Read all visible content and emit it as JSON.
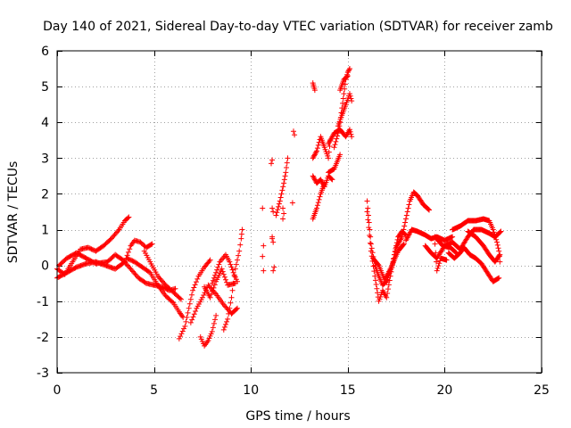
{
  "chart_data": {
    "type": "scatter",
    "title": "Day 140 of 2021, Sidereal Day-to-day VTEC variation (SDTVAR) for receiver zamb",
    "xlabel": "GPS time / hours",
    "ylabel": "SDTVAR / TECUs",
    "xlim": [
      0,
      25
    ],
    "ylim": [
      -3,
      6
    ],
    "xticks": [
      "0",
      "5",
      "10",
      "15",
      "20",
      "25"
    ],
    "yticks": [
      "-3",
      "-2",
      "-1",
      "0",
      "1",
      "2",
      "3",
      "4",
      "5",
      "6"
    ],
    "grid": true,
    "marker": "+",
    "series": [
      {
        "name": "SDTVAR",
        "color": "#ff0000",
        "tracks": [
          [
            [
              0.0,
              -0.1
            ],
            [
              0.4,
              -0.25
            ],
            [
              0.8,
              0.1
            ],
            [
              1.2,
              0.45
            ],
            [
              1.6,
              0.5
            ],
            [
              2.0,
              0.4
            ],
            [
              2.4,
              0.55
            ],
            [
              2.8,
              0.75
            ],
            [
              3.2,
              1.0
            ],
            [
              3.5,
              1.25
            ],
            [
              3.7,
              1.35
            ]
          ],
          [
            [
              0.0,
              -0.35
            ],
            [
              0.5,
              -0.2
            ],
            [
              1.0,
              -0.05
            ],
            [
              1.5,
              0.05
            ],
            [
              2.0,
              0.1
            ],
            [
              2.5,
              0.0
            ],
            [
              3.0,
              -0.1
            ],
            [
              3.5,
              0.1
            ],
            [
              3.8,
              0.55
            ],
            [
              4.0,
              0.7
            ],
            [
              4.3,
              0.65
            ],
            [
              4.6,
              0.5
            ],
            [
              4.9,
              0.6
            ]
          ],
          [
            [
              0.1,
              0.0
            ],
            [
              0.5,
              0.2
            ],
            [
              1.0,
              0.35
            ],
            [
              1.5,
              0.2
            ],
            [
              2.0,
              0.05
            ],
            [
              2.6,
              0.1
            ],
            [
              3.0,
              0.3
            ],
            [
              3.4,
              0.15
            ],
            [
              3.8,
              -0.1
            ],
            [
              4.2,
              -0.35
            ],
            [
              4.6,
              -0.5
            ],
            [
              5.0,
              -0.55
            ],
            [
              5.4,
              -0.6
            ],
            [
              5.8,
              -0.7
            ],
            [
              6.1,
              -0.65
            ]
          ],
          [
            [
              3.6,
              0.2
            ],
            [
              4.0,
              0.1
            ],
            [
              4.4,
              -0.05
            ],
            [
              4.8,
              -0.2
            ],
            [
              5.2,
              -0.55
            ],
            [
              5.6,
              -0.85
            ],
            [
              6.0,
              -1.05
            ],
            [
              6.3,
              -1.3
            ],
            [
              6.5,
              -1.45
            ]
          ],
          [
            [
              4.5,
              0.4
            ],
            [
              4.8,
              0.1
            ],
            [
              5.2,
              -0.3
            ],
            [
              5.6,
              -0.55
            ],
            [
              6.0,
              -0.75
            ],
            [
              6.4,
              -0.95
            ]
          ],
          [
            [
              6.3,
              -2.05
            ],
            [
              6.6,
              -1.7
            ],
            [
              6.8,
              -1.2
            ],
            [
              7.0,
              -0.7
            ],
            [
              7.3,
              -0.3
            ],
            [
              7.6,
              -0.05
            ],
            [
              7.9,
              0.15
            ]
          ],
          [
            [
              6.9,
              -1.6
            ],
            [
              7.2,
              -1.2
            ],
            [
              7.5,
              -0.9
            ],
            [
              7.8,
              -0.55
            ],
            [
              8.2,
              -0.8
            ],
            [
              8.6,
              -1.1
            ],
            [
              9.0,
              -1.35
            ],
            [
              9.3,
              -1.2
            ]
          ],
          [
            [
              7.4,
              -2.0
            ],
            [
              7.6,
              -2.25
            ],
            [
              7.8,
              -2.1
            ],
            [
              8.0,
              -1.85
            ],
            [
              8.2,
              -1.4
            ]
          ],
          [
            [
              8.0,
              -0.5
            ],
            [
              8.2,
              -0.2
            ],
            [
              8.4,
              0.1
            ],
            [
              8.7,
              0.3
            ],
            [
              8.9,
              0.1
            ],
            [
              9.1,
              -0.2
            ],
            [
              9.3,
              -0.45
            ]
          ],
          [
            [
              8.6,
              -1.8
            ],
            [
              8.8,
              -1.5
            ],
            [
              8.9,
              -1.2
            ],
            [
              9.0,
              -0.9
            ],
            [
              9.1,
              -0.5
            ],
            [
              9.2,
              -0.1
            ],
            [
              9.4,
              0.4
            ],
            [
              9.5,
              0.75
            ],
            [
              9.55,
              1.0
            ]
          ],
          [
            [
              7.6,
              -0.6
            ],
            [
              7.9,
              -0.9
            ],
            [
              8.2,
              -0.45
            ],
            [
              8.5,
              -0.1
            ],
            [
              8.8,
              -0.55
            ],
            [
              9.2,
              -0.5
            ]
          ]
        ],
        "points": [
          [
            10.6,
            1.6
          ],
          [
            10.65,
            0.55
          ],
          [
            10.6,
            0.25
          ],
          [
            10.65,
            -0.15
          ],
          [
            11.1,
            1.6
          ],
          [
            11.15,
            1.5
          ],
          [
            11.1,
            0.75
          ],
          [
            11.15,
            0.65
          ],
          [
            11.1,
            0.8
          ],
          [
            11.05,
            2.85
          ],
          [
            11.1,
            2.95
          ],
          [
            11.2,
            -0.05
          ],
          [
            11.15,
            -0.15
          ],
          [
            11.65,
            1.6
          ],
          [
            11.7,
            1.45
          ],
          [
            11.65,
            1.3
          ],
          [
            12.15,
            1.75
          ],
          [
            12.2,
            3.75
          ],
          [
            12.25,
            3.65
          ]
        ],
        "dense_tracks": [
          [
            [
              11.3,
              1.4
            ],
            [
              11.5,
              1.8
            ],
            [
              11.7,
              2.3
            ],
            [
              11.8,
              2.6
            ],
            [
              11.9,
              3.0
            ]
          ],
          [
            [
              13.2,
              5.1
            ],
            [
              13.25,
              5.0
            ],
            [
              13.3,
              4.9
            ]
          ],
          [
            [
              13.2,
              3.0
            ],
            [
              13.4,
              3.2
            ],
            [
              13.6,
              3.6
            ],
            [
              13.8,
              3.3
            ],
            [
              14.0,
              3.0
            ],
            [
              14.1,
              3.5
            ]
          ],
          [
            [
              13.2,
              2.5
            ],
            [
              13.4,
              2.3
            ],
            [
              13.6,
              2.4
            ],
            [
              13.8,
              2.2
            ],
            [
              14.0,
              2.5
            ],
            [
              14.2,
              2.4
            ]
          ],
          [
            [
              13.2,
              1.3
            ],
            [
              13.4,
              1.6
            ],
            [
              13.6,
              2.0
            ],
            [
              13.8,
              2.3
            ]
          ],
          [
            [
              14.3,
              3.3
            ],
            [
              14.5,
              3.7
            ],
            [
              14.6,
              4.0
            ],
            [
              14.7,
              4.4
            ],
            [
              14.8,
              4.8
            ],
            [
              14.9,
              5.2
            ],
            [
              15.0,
              5.4
            ],
            [
              15.1,
              5.5
            ]
          ],
          [
            [
              14.5,
              3.9
            ],
            [
              14.7,
              4.2
            ],
            [
              14.9,
              4.5
            ],
            [
              15.1,
              4.8
            ],
            [
              15.2,
              4.6
            ]
          ],
          [
            [
              14.6,
              4.9
            ],
            [
              14.8,
              5.2
            ],
            [
              15.0,
              5.3
            ]
          ],
          [
            [
              14.0,
              3.4
            ],
            [
              14.3,
              3.7
            ],
            [
              14.6,
              3.8
            ],
            [
              14.9,
              3.6
            ],
            [
              15.1,
              3.8
            ],
            [
              15.2,
              3.6
            ]
          ],
          [
            [
              14.0,
              2.6
            ],
            [
              14.3,
              2.7
            ],
            [
              14.6,
              3.1
            ]
          ],
          [
            [
              16.0,
              1.8
            ],
            [
              16.1,
              1.2
            ],
            [
              16.2,
              0.6
            ],
            [
              16.4,
              0.0
            ],
            [
              16.6,
              -0.3
            ],
            [
              16.8,
              -0.55
            ],
            [
              17.0,
              -0.45
            ],
            [
              17.3,
              0.0
            ],
            [
              17.5,
              0.5
            ],
            [
              17.8,
              0.8
            ],
            [
              18.0,
              1.3
            ],
            [
              18.2,
              1.8
            ],
            [
              18.4,
              2.05
            ],
            [
              18.6,
              1.95
            ],
            [
              18.9,
              1.7
            ],
            [
              19.2,
              1.55
            ]
          ],
          [
            [
              16.0,
              1.5
            ],
            [
              16.2,
              0.4
            ],
            [
              16.4,
              -0.3
            ],
            [
              16.6,
              -1.0
            ],
            [
              16.8,
              -0.7
            ],
            [
              17.0,
              -0.9
            ],
            [
              17.2,
              -0.3
            ],
            [
              17.4,
              0.3
            ],
            [
              17.6,
              0.8
            ],
            [
              17.8,
              0.95
            ],
            [
              18.0,
              0.85
            ]
          ],
          [
            [
              16.3,
              0.2
            ],
            [
              16.6,
              0.0
            ],
            [
              16.9,
              -0.4
            ],
            [
              17.2,
              -0.1
            ],
            [
              17.6,
              0.4
            ],
            [
              17.9,
              0.6
            ]
          ],
          [
            [
              18.0,
              0.7
            ],
            [
              18.3,
              1.0
            ],
            [
              18.6,
              0.95
            ],
            [
              19.0,
              0.85
            ],
            [
              19.3,
              0.75
            ],
            [
              19.6,
              0.8
            ],
            [
              20.0,
              0.7
            ],
            [
              20.4,
              0.8
            ]
          ],
          [
            [
              19.0,
              0.55
            ],
            [
              19.3,
              0.35
            ],
            [
              19.6,
              0.2
            ],
            [
              20.0,
              0.55
            ],
            [
              20.4,
              0.65
            ],
            [
              20.8,
              0.45
            ],
            [
              21.2,
              0.8
            ],
            [
              21.5,
              1.0
            ],
            [
              21.9,
              1.0
            ],
            [
              22.3,
              0.9
            ],
            [
              22.6,
              0.8
            ],
            [
              22.9,
              0.95
            ]
          ],
          [
            [
              19.5,
              0.6
            ],
            [
              19.6,
              -0.15
            ],
            [
              19.8,
              0.2
            ],
            [
              20.1,
              0.15
            ]
          ],
          [
            [
              20.4,
              1.0
            ],
            [
              20.8,
              1.1
            ],
            [
              21.2,
              1.25
            ],
            [
              21.6,
              1.25
            ],
            [
              22.0,
              1.3
            ],
            [
              22.3,
              1.25
            ],
            [
              22.5,
              1.0
            ],
            [
              22.7,
              0.65
            ],
            [
              22.8,
              0.4
            ],
            [
              22.85,
              0.1
            ]
          ],
          [
            [
              20.2,
              0.35
            ],
            [
              20.5,
              0.2
            ],
            [
              20.8,
              0.35
            ],
            [
              21.0,
              0.5
            ],
            [
              21.3,
              0.3
            ],
            [
              21.6,
              0.2
            ],
            [
              21.9,
              0.05
            ],
            [
              22.2,
              -0.2
            ],
            [
              22.5,
              -0.45
            ],
            [
              22.8,
              -0.35
            ]
          ],
          [
            [
              21.2,
              0.95
            ],
            [
              21.6,
              0.8
            ],
            [
              22.0,
              0.55
            ],
            [
              22.3,
              0.3
            ],
            [
              22.6,
              0.1
            ],
            [
              22.85,
              0.3
            ]
          ],
          [
            [
              19.5,
              0.8
            ],
            [
              19.9,
              0.55
            ],
            [
              20.3,
              0.5
            ],
            [
              20.6,
              0.35
            ]
          ]
        ]
      }
    ]
  }
}
